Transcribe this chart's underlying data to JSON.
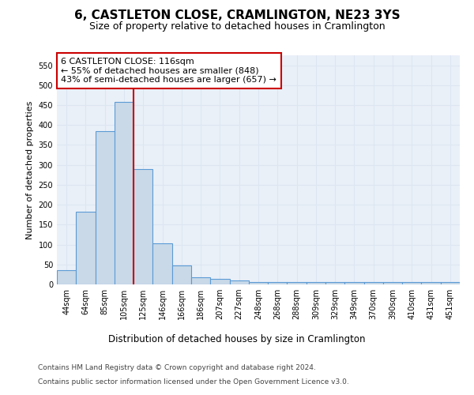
{
  "title": "6, CASTLETON CLOSE, CRAMLINGTON, NE23 3YS",
  "subtitle": "Size of property relative to detached houses in Cramlington",
  "xlabel": "Distribution of detached houses by size in Cramlington",
  "ylabel": "Number of detached properties",
  "categories": [
    "44sqm",
    "64sqm",
    "85sqm",
    "105sqm",
    "125sqm",
    "146sqm",
    "166sqm",
    "186sqm",
    "207sqm",
    "227sqm",
    "248sqm",
    "268sqm",
    "288sqm",
    "309sqm",
    "329sqm",
    "349sqm",
    "370sqm",
    "390sqm",
    "410sqm",
    "431sqm",
    "451sqm"
  ],
  "values": [
    35,
    183,
    384,
    458,
    290,
    103,
    48,
    18,
    13,
    9,
    5,
    5,
    5,
    5,
    5,
    5,
    5,
    5,
    5,
    5,
    5
  ],
  "bar_color": "#c9d9e8",
  "bar_edge_color": "#5b9bd5",
  "vline_x_index": 3.5,
  "vline_color": "#cc0000",
  "annotation_text": "6 CASTLETON CLOSE: 116sqm\n← 55% of detached houses are smaller (848)\n43% of semi-detached houses are larger (657) →",
  "annotation_box_color": "#ffffff",
  "annotation_box_edge": "#cc0000",
  "ylim": [
    0,
    575
  ],
  "yticks": [
    0,
    50,
    100,
    150,
    200,
    250,
    300,
    350,
    400,
    450,
    500,
    550
  ],
  "footer1": "Contains HM Land Registry data © Crown copyright and database right 2024.",
  "footer2": "Contains public sector information licensed under the Open Government Licence v3.0.",
  "background_color": "#ffffff",
  "grid_color": "#dce6f1",
  "title_fontsize": 11,
  "subtitle_fontsize": 9,
  "ylabel_fontsize": 8,
  "xlabel_fontsize": 8.5,
  "tick_fontsize": 7,
  "annotation_fontsize": 8,
  "footer_fontsize": 6.5
}
